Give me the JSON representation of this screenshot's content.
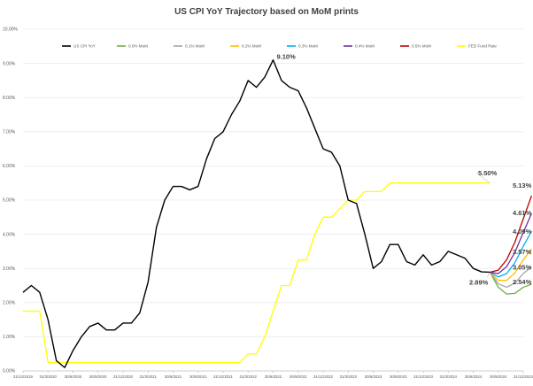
{
  "chart_data": {
    "type": "line",
    "title": "US CPI YoY Trajectory based on MoM prints",
    "xlabel": "",
    "ylabel": "",
    "ylim": [
      0,
      10
    ],
    "y_tick_labels": [
      "0.00%",
      "1.00%",
      "2.00%",
      "3.00%",
      "4.00%",
      "5.00%",
      "6.00%",
      "7.00%",
      "8.00%",
      "9.00%",
      "10.00%"
    ],
    "x_tick_labels": [
      "31/12/2019",
      "31/3/2020",
      "30/6/2020",
      "30/9/2020",
      "31/12/2020",
      "31/3/2021",
      "30/6/2021",
      "30/9/2021",
      "31/12/2021",
      "31/3/2022",
      "30/6/2022",
      "30/9/2022",
      "31/12/2022",
      "31/3/2023",
      "30/6/2023",
      "30/9/2023",
      "31/12/2023",
      "31/3/2024",
      "30/6/2024",
      "30/9/2024",
      "31/12/2024"
    ],
    "legend_position": "top",
    "grid": true,
    "x_months": [
      "2019-12",
      "2020-01",
      "2020-02",
      "2020-03",
      "2020-04",
      "2020-05",
      "2020-06",
      "2020-07",
      "2020-08",
      "2020-09",
      "2020-10",
      "2020-11",
      "2020-12",
      "2021-01",
      "2021-02",
      "2021-03",
      "2021-04",
      "2021-05",
      "2021-06",
      "2021-07",
      "2021-08",
      "2021-09",
      "2021-10",
      "2021-11",
      "2021-12",
      "2022-01",
      "2022-02",
      "2022-03",
      "2022-04",
      "2022-05",
      "2022-06",
      "2022-07",
      "2022-08",
      "2022-09",
      "2022-10",
      "2022-11",
      "2022-12",
      "2023-01",
      "2023-02",
      "2023-03",
      "2023-04",
      "2023-05",
      "2023-06",
      "2023-07",
      "2023-08",
      "2023-09",
      "2023-10",
      "2023-11",
      "2023-12",
      "2024-01",
      "2024-02",
      "2024-03",
      "2024-04",
      "2024-05",
      "2024-06",
      "2024-07",
      "2024-08",
      "2024-09",
      "2024-10",
      "2024-11",
      "2024-12"
    ],
    "forecast_months": [
      "2024-08",
      "2024-09",
      "2024-10",
      "2024-11",
      "2024-12"
    ],
    "series": [
      {
        "name": "US CPI YoY",
        "color": "#000000",
        "values": [
          2.3,
          2.5,
          2.3,
          1.5,
          0.3,
          0.1,
          0.6,
          1.0,
          1.3,
          1.4,
          1.2,
          1.2,
          1.4,
          1.4,
          1.7,
          2.6,
          4.2,
          5.0,
          5.4,
          5.4,
          5.3,
          5.4,
          6.2,
          6.8,
          7.0,
          7.5,
          7.9,
          8.5,
          8.3,
          8.6,
          9.1,
          8.5,
          8.3,
          8.2,
          7.7,
          7.1,
          6.5,
          6.4,
          6.0,
          5.0,
          4.9,
          4.0,
          3.0,
          3.2,
          3.7,
          3.7,
          3.2,
          3.1,
          3.4,
          3.1,
          3.2,
          3.5,
          3.4,
          3.3,
          3.0,
          2.9,
          2.89
        ]
      },
      {
        "name": "0.0% MoM",
        "color": "#70ad47",
        "values": [
          2.89,
          2.45,
          2.25,
          2.27,
          2.45,
          2.54
        ]
      },
      {
        "name": "0.1% MoM",
        "color": "#a5a5a5",
        "values": [
          2.89,
          2.55,
          2.45,
          2.57,
          2.85,
          3.05
        ]
      },
      {
        "name": "0.2% MoM",
        "color": "#ffc000",
        "values": [
          2.89,
          2.65,
          2.65,
          2.87,
          3.25,
          3.57
        ]
      },
      {
        "name": "0.3% MoM",
        "color": "#00b0f0",
        "values": [
          2.89,
          2.75,
          2.85,
          3.17,
          3.65,
          4.09
        ]
      },
      {
        "name": "0.4% MoM",
        "color": "#7030a0",
        "values": [
          2.89,
          2.85,
          3.05,
          3.47,
          4.05,
          4.61
        ]
      },
      {
        "name": "0.5% MoM",
        "color": "#c00000",
        "values": [
          2.89,
          2.95,
          3.25,
          3.77,
          4.45,
          5.13
        ]
      },
      {
        "name": "FED Fund Rate",
        "color": "#ffff00",
        "values": [
          1.75,
          1.75,
          1.75,
          0.25,
          0.25,
          0.25,
          0.25,
          0.25,
          0.25,
          0.25,
          0.25,
          0.25,
          0.25,
          0.25,
          0.25,
          0.25,
          0.25,
          0.25,
          0.25,
          0.25,
          0.25,
          0.25,
          0.25,
          0.25,
          0.25,
          0.25,
          0.25,
          0.5,
          0.5,
          1.0,
          1.75,
          2.5,
          2.5,
          3.25,
          3.25,
          4.0,
          4.5,
          4.5,
          4.75,
          5.0,
          5.0,
          5.25,
          5.25,
          5.25,
          5.5,
          5.5,
          5.5,
          5.5,
          5.5,
          5.5,
          5.5,
          5.5,
          5.5,
          5.5,
          5.5,
          5.5,
          5.5
        ]
      }
    ],
    "annotations": [
      {
        "text": "9.10%",
        "x": "2022-06",
        "y": 9.1
      },
      {
        "text": "5.50%",
        "x": "2024-08",
        "y": 5.5
      },
      {
        "text": "2.89%",
        "x": "2024-08",
        "y": 2.89
      },
      {
        "text": "5.13%",
        "x": "2024-12",
        "y": 5.13
      },
      {
        "text": "4.61%",
        "x": "2024-12",
        "y": 4.61
      },
      {
        "text": "4.09%",
        "x": "2024-12",
        "y": 4.09
      },
      {
        "text": "3.57%",
        "x": "2024-12",
        "y": 3.57
      },
      {
        "text": "3.05%",
        "x": "2024-12",
        "y": 3.05
      },
      {
        "text": "2.54%",
        "x": "2024-12",
        "y": 2.54
      }
    ]
  }
}
